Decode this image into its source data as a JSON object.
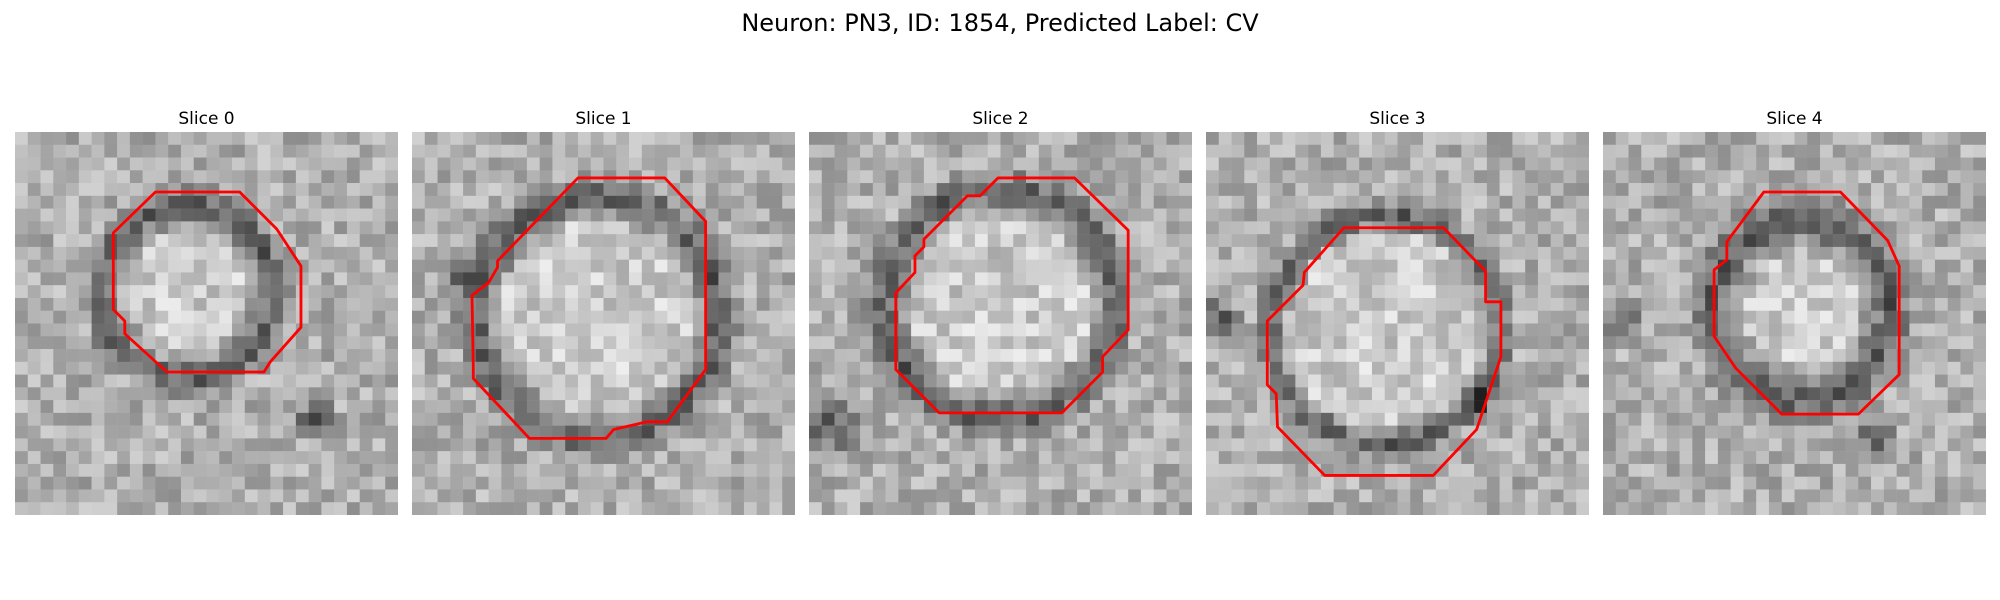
{
  "figure": {
    "title": "Neuron: PN3, ID: 1854, Predicted Label: CV",
    "panels": [
      {
        "title": "Slice 0"
      },
      {
        "title": "Slice 1"
      },
      {
        "title": "Slice 2"
      },
      {
        "title": "Slice 3"
      },
      {
        "title": "Slice 4"
      }
    ]
  },
  "colors": {
    "contour": "#ff0000"
  }
}
